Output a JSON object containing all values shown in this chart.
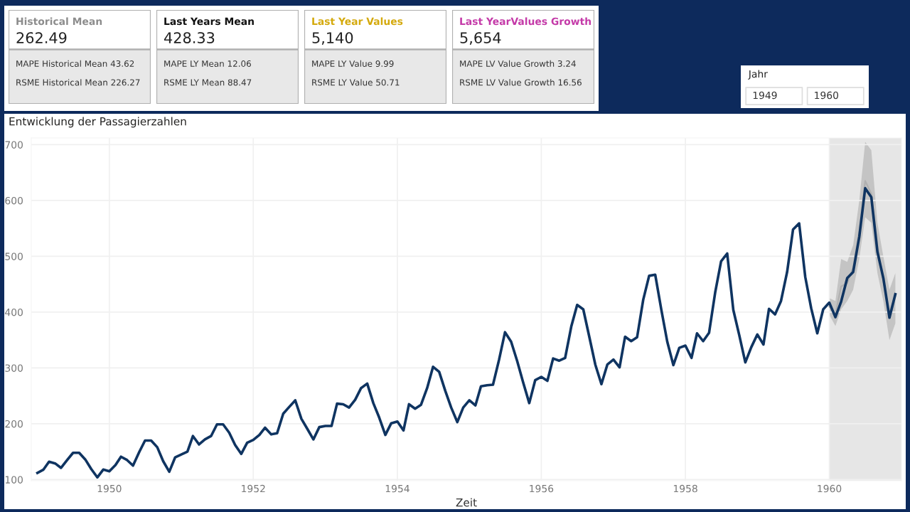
{
  "chart_data": [
    {
      "type": "other",
      "title": "Historical Mean",
      "color": "#8c8c8c",
      "annotations": [
        "262.49",
        "MAPE Historical Mean 43.62",
        "RSME Historical Mean 226.27"
      ]
    },
    {
      "type": "other",
      "title": "Last Years Mean",
      "color": "#111111",
      "annotations": [
        "428.33",
        "MAPE LY Mean 12.06",
        "RSME LY Mean 88.47"
      ]
    },
    {
      "type": "other",
      "title": "Last Year Values",
      "color": "#d4a90c",
      "annotations": [
        "5,140",
        "MAPE LY Value 9.99",
        "RSME LY Value 50.71"
      ]
    },
    {
      "type": "other",
      "title": "Last YearValues Growth",
      "color": "#c43aa8",
      "annotations": [
        "5,654",
        "MAPE LV Value Growth 3.24",
        "RSME LV Value Growth 16.56"
      ]
    },
    {
      "type": "other",
      "title": "Jahr",
      "annotations": [
        "1949",
        "1960"
      ]
    },
    {
      "type": "line",
      "title": "Entwicklung der Passagierzahlen",
      "xlabel": "Zeit",
      "xlim": [
        "1948-12-01",
        "1961-01-01"
      ],
      "ylim": [
        98,
        712
      ],
      "xticks": [
        {
          "value": "1950-01-01",
          "label": "1950"
        },
        {
          "value": "1952-01-01",
          "label": "1952"
        },
        {
          "value": "1954-01-01",
          "label": "1954"
        },
        {
          "value": "1956-01-01",
          "label": "1956"
        },
        {
          "value": "1958-01-01",
          "label": "1958"
        },
        {
          "value": "1960-01-01",
          "label": "1960"
        }
      ],
      "yticks": [
        100,
        200,
        300,
        400,
        500,
        600,
        700
      ],
      "grid": true,
      "legend": false,
      "marker": "none",
      "line_style": "solid",
      "bands": [
        {
          "axis": "x",
          "from": "1960-01-01",
          "to": "1961-01-01",
          "color": "#e6e6e6"
        }
      ],
      "series": [
        {
          "color": "#b0b0b0",
          "x": [
            "1960-01",
            "1960-02",
            "1960-03",
            "1960-04",
            "1960-05",
            "1960-06",
            "1960-07",
            "1960-08",
            "1960-09",
            "1960-10",
            "1960-11",
            "1960-12"
          ],
          "values": [
            410,
            396,
            446,
            452,
            480,
            545,
            635,
            612,
            520,
            455,
            400,
            430
          ],
          "lower": [
            395,
            375,
            405,
            420,
            440,
            495,
            570,
            560,
            470,
            420,
            350,
            380
          ],
          "upper": [
            425,
            420,
            495,
            490,
            520,
            600,
            705,
            690,
            560,
            500,
            440,
            470
          ]
        },
        {
          "color": "#0f3461",
          "x": [
            "1949-01",
            "1949-02",
            "1949-03",
            "1949-04",
            "1949-05",
            "1949-06",
            "1949-07",
            "1949-08",
            "1949-09",
            "1949-10",
            "1949-11",
            "1949-12",
            "1950-01",
            "1950-02",
            "1950-03",
            "1950-04",
            "1950-05",
            "1950-06",
            "1950-07",
            "1950-08",
            "1950-09",
            "1950-10",
            "1950-11",
            "1950-12",
            "1951-01",
            "1951-02",
            "1951-03",
            "1951-04",
            "1951-05",
            "1951-06",
            "1951-07",
            "1951-08",
            "1951-09",
            "1951-10",
            "1951-11",
            "1951-12",
            "1952-01",
            "1952-02",
            "1952-03",
            "1952-04",
            "1952-05",
            "1952-06",
            "1952-07",
            "1952-08",
            "1952-09",
            "1952-10",
            "1952-11",
            "1952-12",
            "1953-01",
            "1953-02",
            "1953-03",
            "1953-04",
            "1953-05",
            "1953-06",
            "1953-07",
            "1953-08",
            "1953-09",
            "1953-10",
            "1953-11",
            "1953-12",
            "1954-01",
            "1954-02",
            "1954-03",
            "1954-04",
            "1954-05",
            "1954-06",
            "1954-07",
            "1954-08",
            "1954-09",
            "1954-10",
            "1954-11",
            "1954-12",
            "1955-01",
            "1955-02",
            "1955-03",
            "1955-04",
            "1955-05",
            "1955-06",
            "1955-07",
            "1955-08",
            "1955-09",
            "1955-10",
            "1955-11",
            "1955-12",
            "1956-01",
            "1956-02",
            "1956-03",
            "1956-04",
            "1956-05",
            "1956-06",
            "1956-07",
            "1956-08",
            "1956-09",
            "1956-10",
            "1956-11",
            "1956-12",
            "1957-01",
            "1957-02",
            "1957-03",
            "1957-04",
            "1957-05",
            "1957-06",
            "1957-07",
            "1957-08",
            "1957-09",
            "1957-10",
            "1957-11",
            "1957-12",
            "1958-01",
            "1958-02",
            "1958-03",
            "1958-04",
            "1958-05",
            "1958-06",
            "1958-07",
            "1958-08",
            "1958-09",
            "1958-10",
            "1958-11",
            "1958-12",
            "1959-01",
            "1959-02",
            "1959-03",
            "1959-04",
            "1959-05",
            "1959-06",
            "1959-07",
            "1959-08",
            "1959-09",
            "1959-10",
            "1959-11",
            "1959-12",
            "1960-01",
            "1960-02",
            "1960-03",
            "1960-04",
            "1960-05",
            "1960-06",
            "1960-07",
            "1960-08",
            "1960-09",
            "1960-10",
            "1960-11",
            "1960-12"
          ],
          "values": [
            112,
            118,
            132,
            129,
            121,
            135,
            148,
            148,
            136,
            119,
            104,
            118,
            115,
            126,
            141,
            135,
            125,
            149,
            170,
            170,
            158,
            133,
            114,
            140,
            145,
            150,
            178,
            163,
            172,
            178,
            199,
            199,
            184,
            162,
            146,
            166,
            171,
            180,
            193,
            181,
            183,
            218,
            230,
            242,
            209,
            191,
            172,
            194,
            196,
            196,
            236,
            235,
            229,
            243,
            264,
            272,
            237,
            211,
            180,
            201,
            204,
            188,
            235,
            227,
            234,
            264,
            302,
            293,
            259,
            229,
            203,
            229,
            242,
            233,
            267,
            269,
            270,
            315,
            364,
            347,
            312,
            274,
            237,
            278,
            284,
            277,
            317,
            313,
            318,
            374,
            413,
            405,
            355,
            306,
            271,
            306,
            315,
            301,
            356,
            348,
            355,
            422,
            465,
            467,
            404,
            347,
            305,
            336,
            340,
            318,
            362,
            348,
            363,
            435,
            491,
            505,
            404,
            359,
            310,
            337,
            360,
            342,
            406,
            396,
            420,
            472,
            548,
            559,
            463,
            407,
            362,
            405,
            417,
            391,
            419,
            461,
            472,
            535,
            622,
            606,
            508,
            461,
            390,
            432
          ]
        }
      ]
    }
  ]
}
